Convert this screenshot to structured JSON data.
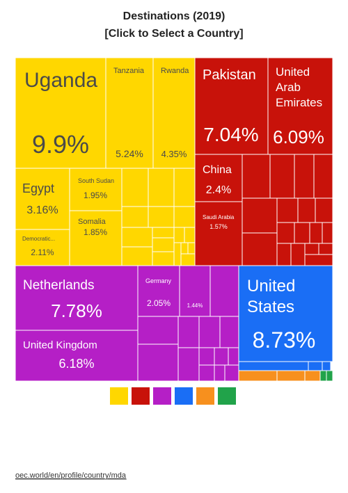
{
  "chart_data": {
    "type": "treemap",
    "title": "Destinations (2019)",
    "subtitle": "[Click to Select a Country]",
    "categories": [
      "Uganda",
      "Tanzania",
      "Rwanda",
      "Egypt",
      "Democratic...",
      "South Sudan",
      "Somalia",
      "Pakistan",
      "United Arab Emirates",
      "China",
      "Saudi Arabia",
      "Netherlands",
      "United Kingdom",
      "Germany",
      null,
      "United States"
    ],
    "values": [
      9.9,
      5.24,
      4.35,
      3.16,
      2.11,
      1.95,
      1.85,
      7.04,
      6.09,
      2.4,
      1.57,
      7.78,
      6.18,
      2.05,
      1.44,
      8.73
    ],
    "value_labels": [
      "9.9%",
      "5.24%",
      "4.35%",
      "3.16%",
      "2.11%",
      "1.95%",
      "1.85%",
      "7.04%",
      "6.09%",
      "2.4%",
      "1.57%",
      "7.78%",
      "6.18%",
      "2.05%",
      "1.44%",
      "8.73%"
    ],
    "colors": [
      "#ffd700",
      "#ffd700",
      "#ffd700",
      "#ffd700",
      "#ffd700",
      "#ffd700",
      "#ffd700",
      "#c8120a",
      "#c8120a",
      "#c8120a",
      "#c8120a",
      "#b51fc6",
      "#b51fc6",
      "#b51fc6",
      "#b51fc6",
      "#1a6ef5"
    ],
    "legend_colors": [
      "#ffd700",
      "#c8120a",
      "#b51fc6",
      "#1a6ef5",
      "#f7901e",
      "#21a34a"
    ],
    "source": "oec.world/en/profile/country/mda"
  }
}
